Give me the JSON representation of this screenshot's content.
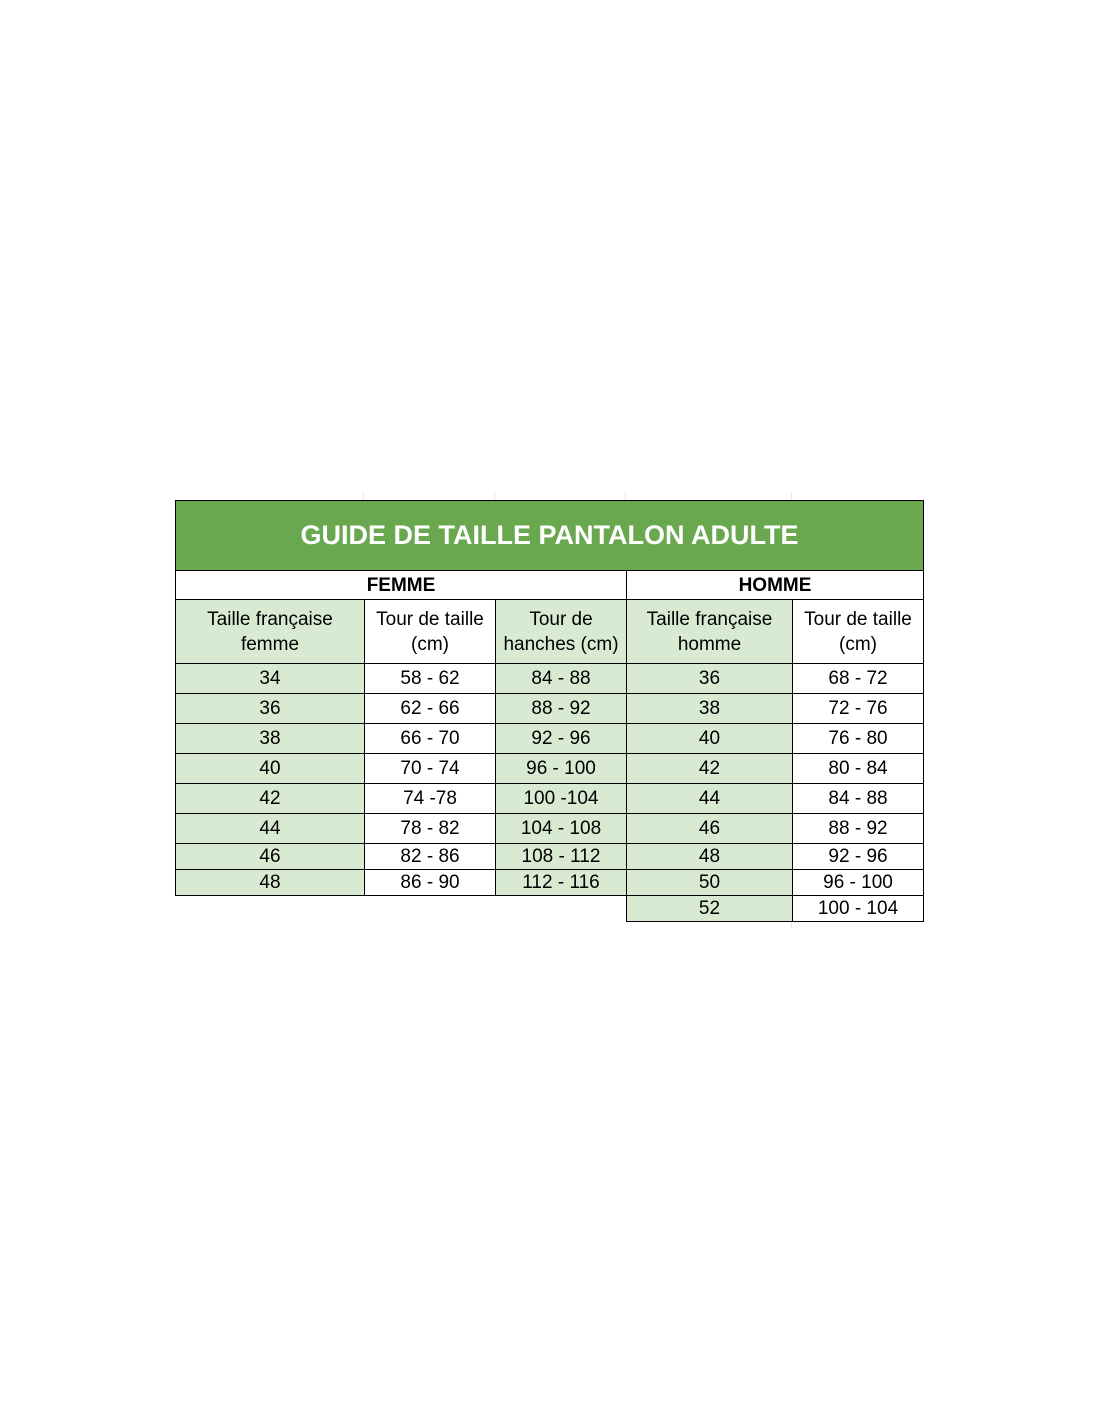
{
  "title": "GUIDE DE TAILLE PANTALON ADULTE",
  "groups": {
    "femme": "FEMME",
    "homme": "HOMME"
  },
  "headers": [
    [
      "Taille française",
      "femme"
    ],
    [
      "Tour de taille",
      "(cm)"
    ],
    [
      "Tour de",
      "hanches (cm)"
    ],
    [
      "Taille française",
      "homme"
    ],
    [
      "Tour de taille",
      "(cm)"
    ]
  ],
  "rows": [
    [
      "34",
      "58 - 62",
      "84 - 88",
      "36",
      "68 - 72"
    ],
    [
      "36",
      "62 - 66",
      "88 - 92",
      "38",
      "72 - 76"
    ],
    [
      "38",
      "66 - 70",
      "92 - 96",
      "40",
      "76 - 80"
    ],
    [
      "40",
      "70 - 74",
      "96 - 100",
      "42",
      "80 - 84"
    ],
    [
      "42",
      "74 -78",
      "100 -104",
      "44",
      "84 - 88"
    ],
    [
      "44",
      "78 - 82",
      "104 - 108",
      "46",
      "88 - 92"
    ],
    [
      "46",
      "82 - 86",
      "108 - 112",
      "48",
      "92 - 96"
    ],
    [
      "48",
      "86 - 90",
      "112 - 116",
      "50",
      "96 - 100"
    ],
    [
      "",
      "",
      "",
      "52",
      "100 - 104"
    ]
  ],
  "colors": {
    "title_bg": "#6aa84f",
    "shaded_cell": "#d9ead3"
  }
}
